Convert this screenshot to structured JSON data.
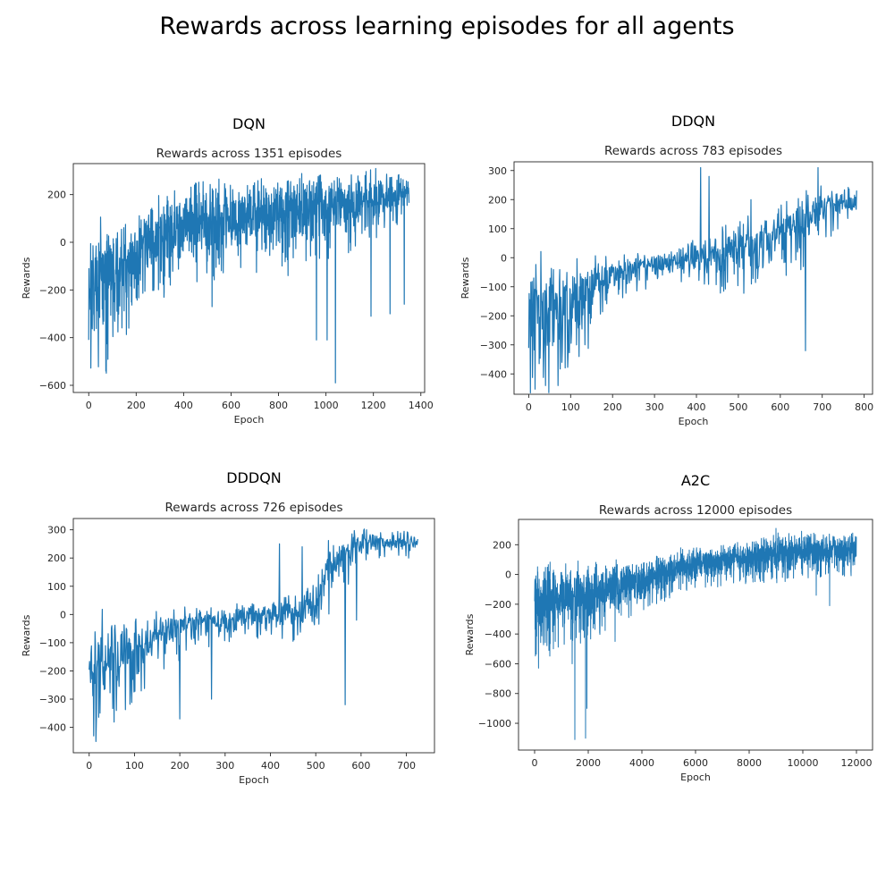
{
  "suptitle": "Rewards across learning episodes for all agents",
  "style": {
    "line_color": "#1f77b4",
    "frame_color": "#262626"
  },
  "chart_data": [
    {
      "type": "line",
      "agent": "DQN",
      "title": "Rewards across 1351 episodes",
      "xlabel": "Epoch",
      "ylabel": "Rewards",
      "xlim": [
        -65,
        1416
      ],
      "ylim": [
        -630,
        330
      ],
      "xticks": [
        0,
        200,
        400,
        600,
        800,
        1000,
        1200,
        1400
      ],
      "yticks": [
        -600,
        -400,
        -200,
        0,
        200
      ],
      "grid": false,
      "legend": "none",
      "episodes": 1351,
      "series": [
        {
          "x": [
            0,
            50,
            100,
            150,
            200,
            250,
            300,
            350,
            400,
            450,
            500,
            550,
            600,
            650,
            700,
            750,
            800,
            850,
            900,
            950,
            1000,
            1050,
            1100,
            1150,
            1200,
            1250,
            1300,
            1350
          ],
          "y": [
            -160,
            -150,
            -130,
            -100,
            -60,
            0,
            40,
            60,
            80,
            90,
            95,
            100,
            110,
            120,
            125,
            130,
            135,
            140,
            150,
            155,
            160,
            165,
            170,
            175,
            180,
            185,
            200,
            225
          ],
          "spread": [
            250,
            250,
            220,
            180,
            160,
            150,
            160,
            160,
            160,
            160,
            150,
            150,
            150,
            140,
            140,
            140,
            140,
            140,
            130,
            130,
            130,
            120,
            120,
            120,
            110,
            100,
            80,
            50
          ]
        }
      ],
      "spikes": [
        [
          1040,
          -590
        ],
        [
          960,
          -410
        ],
        [
          1005,
          -410
        ],
        [
          1270,
          -300
        ],
        [
          1330,
          -260
        ],
        [
          520,
          -270
        ],
        [
          40,
          -430
        ],
        [
          0,
          -410
        ],
        [
          840,
          -140
        ],
        [
          1190,
          -310
        ]
      ]
    },
    {
      "type": "line",
      "agent": "DDQN",
      "title": "Rewards across 783 episodes",
      "xlabel": "Epoch",
      "ylabel": "Rewards",
      "xlim": [
        -35,
        820
      ],
      "ylim": [
        -470,
        330
      ],
      "xticks": [
        0,
        100,
        200,
        300,
        400,
        500,
        600,
        700,
        800
      ],
      "yticks": [
        -400,
        -300,
        -200,
        -100,
        0,
        100,
        200,
        300
      ],
      "grid": false,
      "legend": "none",
      "episodes": 783,
      "series": [
        {
          "x": [
            0,
            50,
            100,
            150,
            200,
            250,
            300,
            350,
            400,
            450,
            500,
            550,
            600,
            650,
            700,
            750,
            783
          ],
          "y": [
            -170,
            -170,
            -150,
            -100,
            -50,
            -30,
            -20,
            -10,
            0,
            10,
            30,
            60,
            90,
            120,
            170,
            200,
            200
          ],
          "spread": [
            170,
            170,
            150,
            110,
            60,
            50,
            45,
            40,
            60,
            90,
            100,
            100,
            100,
            100,
            70,
            50,
            40
          ]
        }
      ],
      "spikes": [
        [
          410,
          310
        ],
        [
          690,
          310
        ],
        [
          660,
          -320
        ],
        [
          40,
          -440
        ],
        [
          70,
          -440
        ],
        [
          430,
          280
        ],
        [
          120,
          -340
        ],
        [
          530,
          200
        ]
      ]
    },
    {
      "type": "line",
      "agent": "DDDQN",
      "title": "Rewards across 726 episodes",
      "xlabel": "Epoch",
      "ylabel": "Rewards",
      "xlim": [
        -35,
        762
      ],
      "ylim": [
        -490,
        340
      ],
      "xticks": [
        0,
        100,
        200,
        300,
        400,
        500,
        600,
        700
      ],
      "yticks": [
        -400,
        -300,
        -200,
        -100,
        0,
        100,
        200,
        300
      ],
      "grid": false,
      "legend": "none",
      "episodes": 726,
      "series": [
        {
          "x": [
            0,
            50,
            100,
            150,
            200,
            250,
            300,
            350,
            400,
            450,
            500,
            520,
            550,
            600,
            650,
            700,
            726
          ],
          "y": [
            -160,
            -150,
            -110,
            -80,
            -40,
            -20,
            -10,
            -5,
            0,
            10,
            30,
            150,
            200,
            250,
            260,
            260,
            255
          ],
          "spread": [
            150,
            140,
            110,
            80,
            70,
            60,
            50,
            45,
            50,
            60,
            80,
            100,
            80,
            50,
            40,
            35,
            30
          ]
        }
      ],
      "spikes": [
        [
          10,
          -430
        ],
        [
          15,
          -450
        ],
        [
          565,
          -320
        ],
        [
          200,
          -370
        ],
        [
          420,
          250
        ],
        [
          470,
          240
        ],
        [
          590,
          -20
        ],
        [
          270,
          -300
        ],
        [
          60,
          -340
        ]
      ]
    },
    {
      "type": "line",
      "agent": "A2C",
      "title": "Rewards across 12000 episodes",
      "xlabel": "Epoch",
      "ylabel": "Rewards",
      "xlim": [
        -600,
        12600
      ],
      "ylim": [
        -1180,
        370
      ],
      "xticks": [
        0,
        2000,
        4000,
        6000,
        8000,
        10000,
        12000
      ],
      "yticks": [
        -1000,
        -800,
        -600,
        -400,
        -200,
        0,
        200
      ],
      "grid": false,
      "legend": "none",
      "episodes": 12000,
      "series": [
        {
          "x": [
            0,
            1000,
            2000,
            3000,
            4000,
            5000,
            6000,
            7000,
            8000,
            9000,
            10000,
            11000,
            12000
          ],
          "y": [
            -200,
            -150,
            -120,
            -80,
            -40,
            30,
            80,
            100,
            120,
            150,
            160,
            165,
            170
          ],
          "spread": [
            250,
            200,
            180,
            150,
            120,
            110,
            100,
            100,
            100,
            120,
            110,
            100,
            100
          ]
        }
      ],
      "spikes": [
        [
          1500,
          -1110
        ],
        [
          1900,
          -1100
        ],
        [
          1950,
          -900
        ],
        [
          1400,
          -600
        ],
        [
          700,
          -500
        ],
        [
          3000,
          -450
        ],
        [
          11000,
          -210
        ],
        [
          9000,
          310
        ],
        [
          10500,
          -140
        ]
      ]
    }
  ]
}
